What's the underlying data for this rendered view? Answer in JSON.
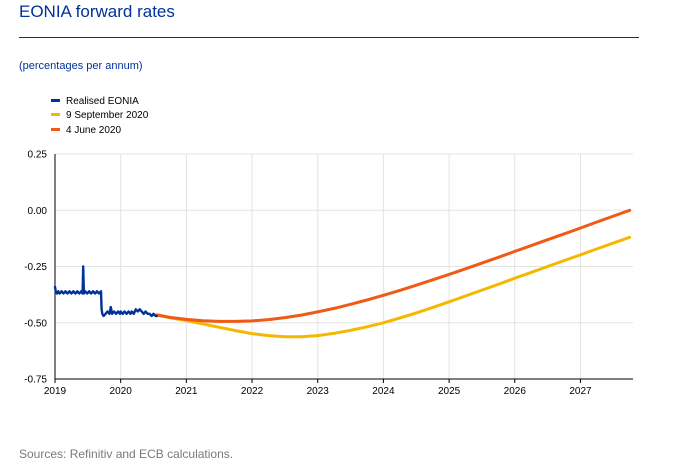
{
  "title": "EONIA forward rates",
  "subtitle": "(percentages per annum)",
  "source": "Sources: Refinitiv and ECB calculations.",
  "colors": {
    "realised": "#003399",
    "sep": "#f5b800",
    "jun": "#ef5a15",
    "grid": "#e3e3e3",
    "title": "#003299"
  },
  "chart_data": {
    "type": "line",
    "title": "EONIA forward rates",
    "ylabel": "percentages per annum",
    "xlim": [
      2019.0,
      2027.8
    ],
    "ylim": [
      -0.75,
      0.25
    ],
    "x_ticks": [
      "2019",
      "2020",
      "2021",
      "2022",
      "2023",
      "2024",
      "2025",
      "2026",
      "2027"
    ],
    "y_ticks": [
      "0.25",
      "0.00",
      "-0.25",
      "-0.50",
      "-0.75"
    ],
    "legend": [
      "Realised EONIA",
      "9 September 2020",
      "4 June 2020"
    ],
    "series": [
      {
        "name": "Realised EONIA",
        "x": [
          2019.0,
          2019.01,
          2019.03,
          2019.05,
          2019.07,
          2019.1,
          2019.13,
          2019.16,
          2019.19,
          2019.22,
          2019.25,
          2019.28,
          2019.31,
          2019.34,
          2019.37,
          2019.4,
          2019.42,
          2019.43,
          2019.44,
          2019.46,
          2019.49,
          2019.52,
          2019.55,
          2019.58,
          2019.61,
          2019.64,
          2019.67,
          2019.7,
          2019.71,
          2019.72,
          2019.74,
          2019.77,
          2019.8,
          2019.83,
          2019.85,
          2019.87,
          2019.9,
          2019.93,
          2019.96,
          2019.99,
          2020.0,
          2020.03,
          2020.06,
          2020.09,
          2020.12,
          2020.15,
          2020.17,
          2020.2,
          2020.23,
          2020.26,
          2020.29,
          2020.32,
          2020.35,
          2020.38,
          2020.41,
          2020.44,
          2020.47,
          2020.5,
          2020.53,
          2020.55
        ],
        "y": [
          -0.34,
          -0.36,
          -0.37,
          -0.36,
          -0.37,
          -0.36,
          -0.37,
          -0.36,
          -0.37,
          -0.36,
          -0.37,
          -0.36,
          -0.37,
          -0.36,
          -0.37,
          -0.36,
          -0.37,
          -0.25,
          -0.37,
          -0.36,
          -0.37,
          -0.36,
          -0.37,
          -0.36,
          -0.37,
          -0.36,
          -0.37,
          -0.36,
          -0.44,
          -0.46,
          -0.47,
          -0.46,
          -0.45,
          -0.46,
          -0.43,
          -0.46,
          -0.45,
          -0.46,
          -0.45,
          -0.46,
          -0.45,
          -0.46,
          -0.45,
          -0.46,
          -0.45,
          -0.46,
          -0.45,
          -0.46,
          -0.44,
          -0.45,
          -0.44,
          -0.45,
          -0.46,
          -0.45,
          -0.46,
          -0.46,
          -0.47,
          -0.46,
          -0.47,
          -0.47
        ]
      },
      {
        "name": "9 September 2020",
        "x": [
          2020.55,
          2020.75,
          2021.0,
          2021.25,
          2021.5,
          2021.75,
          2022.0,
          2022.25,
          2022.5,
          2022.75,
          2023.0,
          2023.25,
          2023.5,
          2023.75,
          2024.0,
          2024.25,
          2024.5,
          2024.75,
          2025.0,
          2025.25,
          2025.5,
          2025.75,
          2026.0,
          2026.25,
          2026.5,
          2026.75,
          2027.0,
          2027.25,
          2027.5,
          2027.75
        ],
        "y": [
          -0.465,
          -0.478,
          -0.49,
          -0.505,
          -0.52,
          -0.535,
          -0.548,
          -0.557,
          -0.562,
          -0.562,
          -0.557,
          -0.547,
          -0.534,
          -0.518,
          -0.5,
          -0.479,
          -0.456,
          -0.432,
          -0.407,
          -0.381,
          -0.355,
          -0.329,
          -0.302,
          -0.276,
          -0.25,
          -0.224,
          -0.198,
          -0.172,
          -0.146,
          -0.12
        ]
      },
      {
        "name": "4 June 2020",
        "x": [
          2020.55,
          2020.75,
          2021.0,
          2021.25,
          2021.5,
          2021.75,
          2022.0,
          2022.25,
          2022.5,
          2022.75,
          2023.0,
          2023.25,
          2023.5,
          2023.75,
          2024.0,
          2024.25,
          2024.5,
          2024.75,
          2025.0,
          2025.25,
          2025.5,
          2025.75,
          2026.0,
          2026.25,
          2026.5,
          2026.75,
          2027.0,
          2027.25,
          2027.5,
          2027.75
        ],
        "y": [
          -0.465,
          -0.476,
          -0.485,
          -0.491,
          -0.494,
          -0.494,
          -0.492,
          -0.486,
          -0.477,
          -0.466,
          -0.452,
          -0.436,
          -0.418,
          -0.399,
          -0.378,
          -0.356,
          -0.333,
          -0.309,
          -0.285,
          -0.26,
          -0.235,
          -0.209,
          -0.183,
          -0.157,
          -0.131,
          -0.105,
          -0.079,
          -0.052,
          -0.026,
          0.0
        ]
      }
    ]
  }
}
